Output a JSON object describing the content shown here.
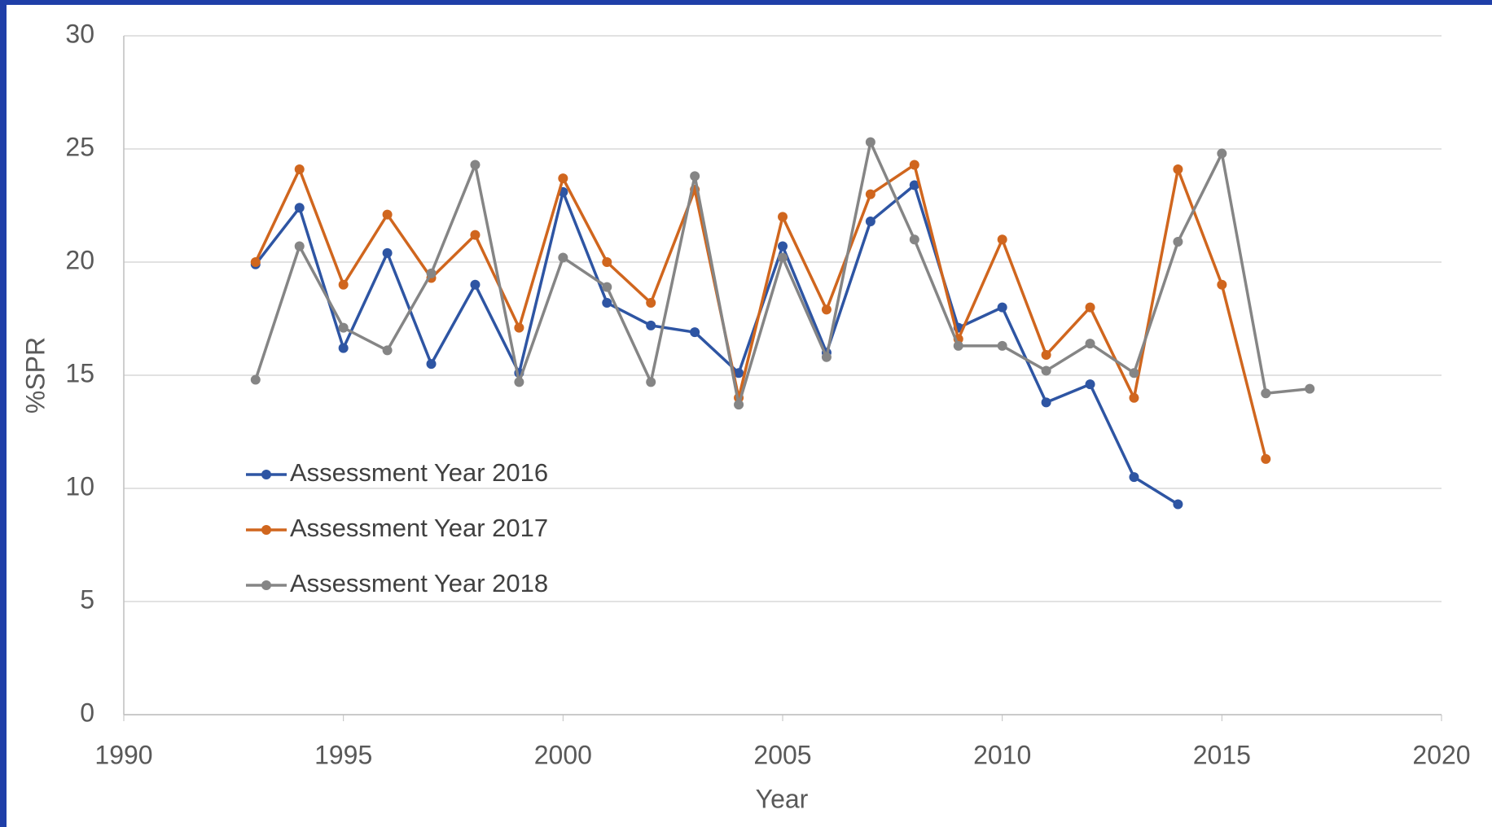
{
  "chart_data": {
    "type": "line",
    "xlabel": "Year",
    "ylabel": "%SPR",
    "xlim": [
      1990,
      2020
    ],
    "xticks": [
      1990,
      1995,
      2000,
      2005,
      2010,
      2015,
      2020
    ],
    "ylim": [
      0,
      30
    ],
    "yticks": [
      0,
      5,
      10,
      15,
      20,
      25,
      30
    ],
    "grid": true,
    "legend": "lower left",
    "series": [
      {
        "name": "Assessment Year 2016",
        "color": "#2e55a3",
        "x": [
          1993,
          1994,
          1995,
          1996,
          1997,
          1998,
          1999,
          2000,
          2001,
          2002,
          2003,
          2004,
          2005,
          2006,
          2007,
          2008,
          2009,
          2010,
          2011,
          2012,
          2013,
          2014
        ],
        "values": [
          19.9,
          22.4,
          16.2,
          20.4,
          15.5,
          19.0,
          15.1,
          23.1,
          18.2,
          17.2,
          16.9,
          15.1,
          20.7,
          16.0,
          21.8,
          23.4,
          17.1,
          18.0,
          13.8,
          14.6,
          10.5,
          9.3
        ]
      },
      {
        "name": "Assessment Year 2017",
        "color": "#d0661e",
        "x": [
          1993,
          1994,
          1995,
          1996,
          1997,
          1998,
          1999,
          2000,
          2001,
          2002,
          2003,
          2004,
          2005,
          2006,
          2007,
          2008,
          2009,
          2010,
          2011,
          2012,
          2013,
          2014,
          2015,
          2016
        ],
        "values": [
          20.0,
          24.1,
          19.0,
          22.1,
          19.3,
          21.2,
          17.1,
          23.7,
          20.0,
          18.2,
          23.2,
          14.0,
          22.0,
          17.9,
          23.0,
          24.3,
          16.6,
          21.0,
          15.9,
          18.0,
          14.0,
          24.1,
          19.0,
          11.3
        ]
      },
      {
        "name": "Assessment Year 2018",
        "color": "#858585",
        "x": [
          1993,
          1994,
          1995,
          1996,
          1997,
          1998,
          1999,
          2000,
          2001,
          2002,
          2003,
          2004,
          2005,
          2006,
          2007,
          2008,
          2009,
          2010,
          2011,
          2012,
          2013,
          2014,
          2015,
          2016,
          2017
        ],
        "values": [
          14.8,
          20.7,
          17.1,
          16.1,
          19.5,
          24.3,
          14.7,
          20.2,
          18.9,
          14.7,
          23.8,
          13.7,
          20.2,
          15.8,
          25.3,
          21.0,
          16.3,
          16.3,
          15.2,
          16.4,
          15.1,
          20.9,
          24.8,
          14.2,
          14.4
        ]
      }
    ]
  }
}
